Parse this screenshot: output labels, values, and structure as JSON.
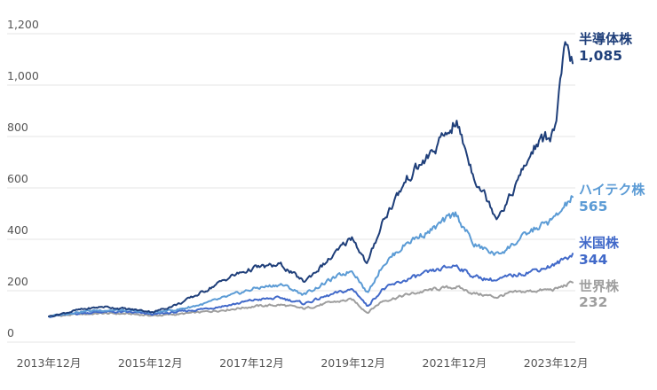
{
  "chart_data": {
    "type": "line",
    "title": "",
    "xlabel": "",
    "ylabel": "",
    "ylim": [
      0,
      1200
    ],
    "yticks": [
      "0",
      "200",
      "400",
      "600",
      "800",
      "1,000",
      "1,200"
    ],
    "ytick_values": [
      0,
      200,
      400,
      600,
      800,
      1000,
      1200
    ],
    "xticks": [
      "2013年12月",
      "2015年12月",
      "2017年12月",
      "2019年12月",
      "2021年12月",
      "2023年12月"
    ],
    "xtick_positions": [
      2013.92,
      2015.92,
      2017.92,
      2019.92,
      2021.92,
      2023.92
    ],
    "xlim": [
      2013.92,
      2024.25
    ],
    "grid": true,
    "legend": "end-of-line labels",
    "series": [
      {
        "name": "世界株",
        "end_label": "232",
        "color": "#9e9e9e",
        "x": [
          2013.92,
          2014.5,
          2015.0,
          2015.5,
          2016.0,
          2016.5,
          2017.0,
          2017.5,
          2018.0,
          2018.5,
          2018.95,
          2019.5,
          2019.9,
          2020.0,
          2020.2,
          2020.5,
          2021.0,
          2021.5,
          2021.95,
          2022.3,
          2022.75,
          2023.0,
          2023.5,
          2023.9,
          2024.25
        ],
        "values": [
          100,
          108,
          112,
          110,
          103,
          109,
          118,
          128,
          140,
          145,
          130,
          155,
          165,
          150,
          115,
          160,
          185,
          205,
          215,
          190,
          175,
          190,
          200,
          205,
          232
        ]
      },
      {
        "name": "米国株",
        "end_label": "344",
        "color": "#4169c9",
        "x": [
          2013.92,
          2014.5,
          2015.0,
          2015.5,
          2016.0,
          2016.5,
          2017.0,
          2017.5,
          2018.0,
          2018.5,
          2018.95,
          2019.5,
          2019.9,
          2020.0,
          2020.2,
          2020.5,
          2021.0,
          2021.5,
          2021.95,
          2022.3,
          2022.75,
          2023.0,
          2023.5,
          2023.9,
          2024.25
        ],
        "values": [
          100,
          112,
          118,
          116,
          108,
          118,
          130,
          145,
          165,
          172,
          150,
          185,
          205,
          190,
          140,
          205,
          245,
          275,
          300,
          255,
          240,
          255,
          280,
          300,
          344
        ]
      },
      {
        "name": "ハイテク株",
        "end_label": "565",
        "color": "#5b9bd5",
        "x": [
          2013.92,
          2014.5,
          2015.0,
          2015.5,
          2016.0,
          2016.5,
          2017.0,
          2017.5,
          2018.0,
          2018.5,
          2018.95,
          2019.5,
          2019.9,
          2020.0,
          2020.2,
          2020.5,
          2021.0,
          2021.5,
          2021.95,
          2022.3,
          2022.75,
          2023.0,
          2023.5,
          2023.9,
          2024.25
        ],
        "values": [
          100,
          118,
          125,
          122,
          115,
          128,
          150,
          180,
          210,
          225,
          185,
          245,
          280,
          255,
          190,
          300,
          390,
          440,
          500,
          380,
          340,
          370,
          440,
          480,
          565
        ]
      },
      {
        "name": "半導体株",
        "end_label": "1,085",
        "color": "#1f3f7a",
        "x": [
          2013.92,
          2014.5,
          2015.0,
          2015.5,
          2016.0,
          2016.5,
          2017.0,
          2017.5,
          2018.0,
          2018.5,
          2018.95,
          2019.5,
          2019.9,
          2020.0,
          2020.2,
          2020.5,
          2021.0,
          2021.5,
          2021.95,
          2022.3,
          2022.75,
          2023.0,
          2023.5,
          2023.9,
          2024.1,
          2024.25
        ],
        "values": [
          100,
          125,
          138,
          128,
          118,
          150,
          200,
          255,
          290,
          300,
          235,
          330,
          410,
          375,
          300,
          470,
          640,
          740,
          860,
          650,
          490,
          560,
          760,
          820,
          1140,
          1085
        ]
      }
    ]
  }
}
